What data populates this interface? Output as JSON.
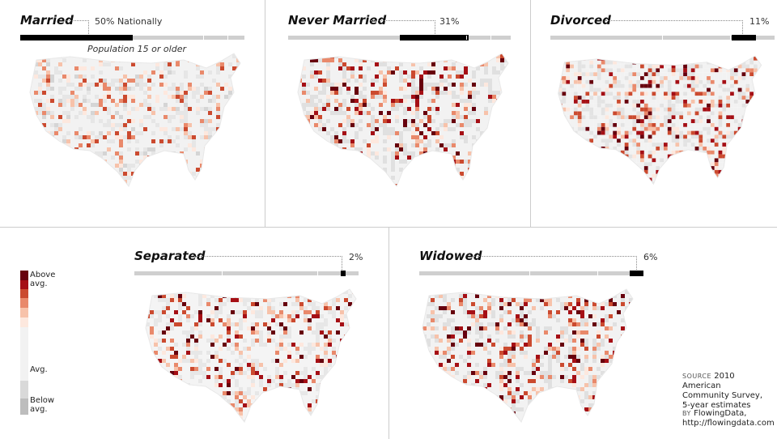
{
  "panels": [
    {
      "id": "married",
      "title": "Married",
      "pct_label": "50% Nationally",
      "subtitle": "Population 15 or older",
      "share": 0.5
    },
    {
      "id": "never",
      "title": "Never Married",
      "pct_label": "31%",
      "share": 0.31
    },
    {
      "id": "divorced",
      "title": "Divorced",
      "pct_label": "11%",
      "share": 0.11
    },
    {
      "id": "separated",
      "title": "Separated",
      "pct_label": "2%",
      "share": 0.02
    },
    {
      "id": "widowed",
      "title": "Widowed",
      "pct_label": "6%",
      "share": 0.06
    }
  ],
  "legend": {
    "above": "Above avg.",
    "avg": "Avg.",
    "below": "Below avg.",
    "colors": [
      "#67000d",
      "#a50f15",
      "#cb4a2f",
      "#e9896b",
      "#f7c2aa",
      "#fde8de",
      "#f2f2f2",
      "#d9d9d9",
      "#bdbdbd"
    ]
  },
  "source": {
    "label": "SOURCE",
    "text_line1": "2010 American",
    "text_line2": "Community Survey,",
    "text_line3": "5-year estimates",
    "by_label": "BY",
    "by_name": "FlowingData,",
    "url": "http://flowingdata.com"
  },
  "colors": {
    "bar_track": "#cfcfcf",
    "bar_fill": "#000000",
    "divider": "#cccccc"
  }
}
